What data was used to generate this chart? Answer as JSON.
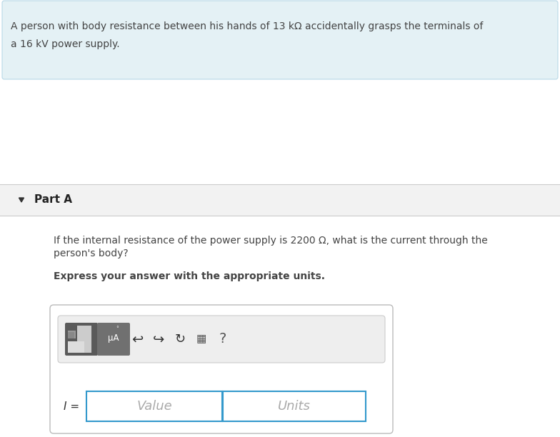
{
  "bg_color": "#ffffff",
  "header_bg": "#e4f1f5",
  "header_border": "#b8d8e8",
  "header_text_line1": "A person with body resistance between his hands of 13 kΩ accidentally grasps the terminals of",
  "header_text_line2": "a 16 kV power supply.",
  "header_text_color": "#444444",
  "header_font_size": 10.0,
  "divider_color": "#cccccc",
  "part_a_bg": "#f2f2f2",
  "part_a_text": "Part A",
  "part_a_font_size": 11,
  "body_text_line1": "If the internal resistance of the power supply is 2200 Ω, what is the current through the",
  "body_text_line2": "person's body?",
  "body_font_size": 10.0,
  "body_text_color": "#444444",
  "express_text": "Express your answer with the appropriate units.",
  "express_font_size": 10.0,
  "answer_box_border": "#3399cc",
  "toolbar_border": "#cccccc",
  "toolbar_bg": "#eeeeee",
  "value_placeholder": "Value",
  "units_placeholder": "Units",
  "placeholder_color": "#aaaaaa",
  "placeholder_font_size": 13,
  "i_label": "I =",
  "mu_a_label": "μA",
  "icon_color": "#555555",
  "btn1_bg": "#666666",
  "btn2_bg": "#777777"
}
